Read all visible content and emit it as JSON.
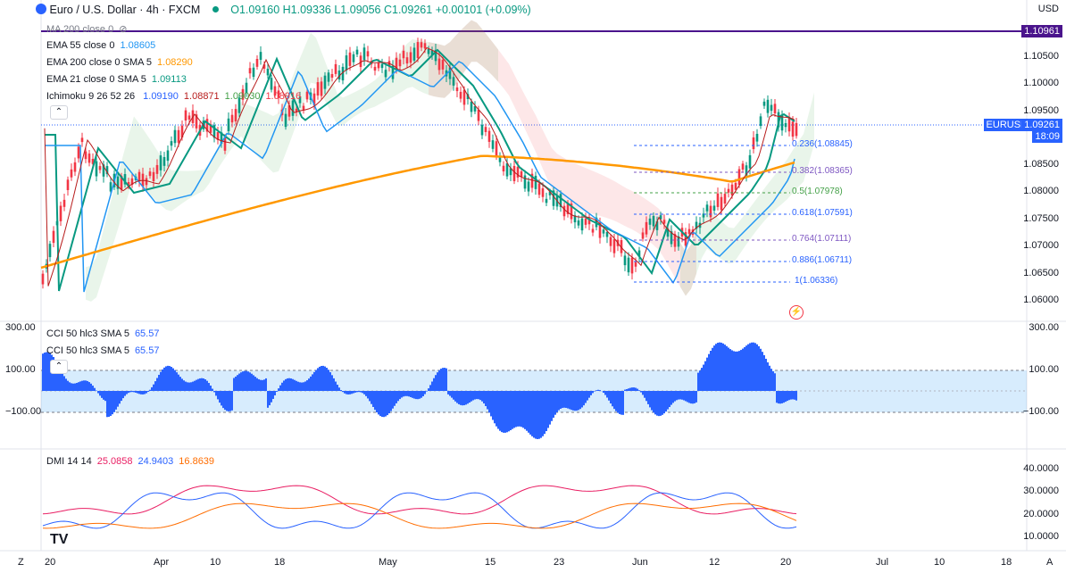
{
  "header": {
    "title": "Euro / U.S. Dollar · 4h · FXCM",
    "open": "O1.09160",
    "high": "H1.09336",
    "low": "L1.09056",
    "close": "C1.09261",
    "change": "+0.00101 (+0.09%)"
  },
  "currency_button": "USD",
  "indicators": {
    "ma200": "MA 200 close 0",
    "ema55_label": "EMA 55 close 0",
    "ema55_val": "1.08605",
    "ema200_label": "EMA 200 close 0 SMA 5",
    "ema200_val": "1.08290",
    "ema21_label": "EMA 21 close 0 SMA 5",
    "ema21_val": "1.09113",
    "ichimoku_label": "Ichimoku 9 26 52 26",
    "ich_v1": "1.09190",
    "ich_v2": "1.08871",
    "ich_v3": "1.09030",
    "ich_v4": "1.08916"
  },
  "price_axis": [
    "1.10500",
    "1.10000",
    "1.09500",
    "1.08500",
    "1.08000",
    "1.07500",
    "1.07000",
    "1.06500",
    "1.06000"
  ],
  "tags": {
    "resistance": "1.10961",
    "symbol": "EURUSD",
    "price": "1.09261",
    "countdown": "18:09"
  },
  "fib_levels": [
    {
      "label": "0.236(1.08845)",
      "color": "#2962ff"
    },
    {
      "label": "0.382(1.08365)",
      "color": "#7e57c2"
    },
    {
      "label": "0.5(1.07978)",
      "color": "#43a047"
    },
    {
      "label": "0.618(1.07591)",
      "color": "#2962ff"
    },
    {
      "label": "0.764(1.07111)",
      "color": "#7e57c2"
    },
    {
      "label": "0.886(1.06711)",
      "color": "#2962ff"
    },
    {
      "label": "1(1.06336)",
      "color": "#2962ff"
    }
  ],
  "cci": {
    "label1": "CCI 50 hlc3 SMA 5",
    "val1": "65.57",
    "label2": "CCI 50 hlc3 SMA 5",
    "val2": "65.57",
    "axis": [
      "300.00",
      "100.00",
      "−100.00"
    ],
    "axis_left": [
      "300.00",
      "100.00",
      "−100.00"
    ]
  },
  "dmi": {
    "label": "DMI 14 14",
    "v1": "25.0858",
    "v2": "24.9403",
    "v3": "16.8639",
    "axis": [
      "40.0000",
      "30.0000",
      "20.0000",
      "10.0000"
    ]
  },
  "x_axis": [
    "20",
    "Apr",
    "10",
    "18",
    "May",
    "15",
    "23",
    "Jun",
    "12",
    "20",
    "Jul",
    "10",
    "18"
  ],
  "footer": {
    "left": "Z",
    "right": "A"
  },
  "colors": {
    "up": "#089981",
    "down": "#f23645",
    "ema55": "#2196f3",
    "ema200": "#ff9800",
    "ema21": "#089981",
    "accent": "#2962ff"
  }
}
